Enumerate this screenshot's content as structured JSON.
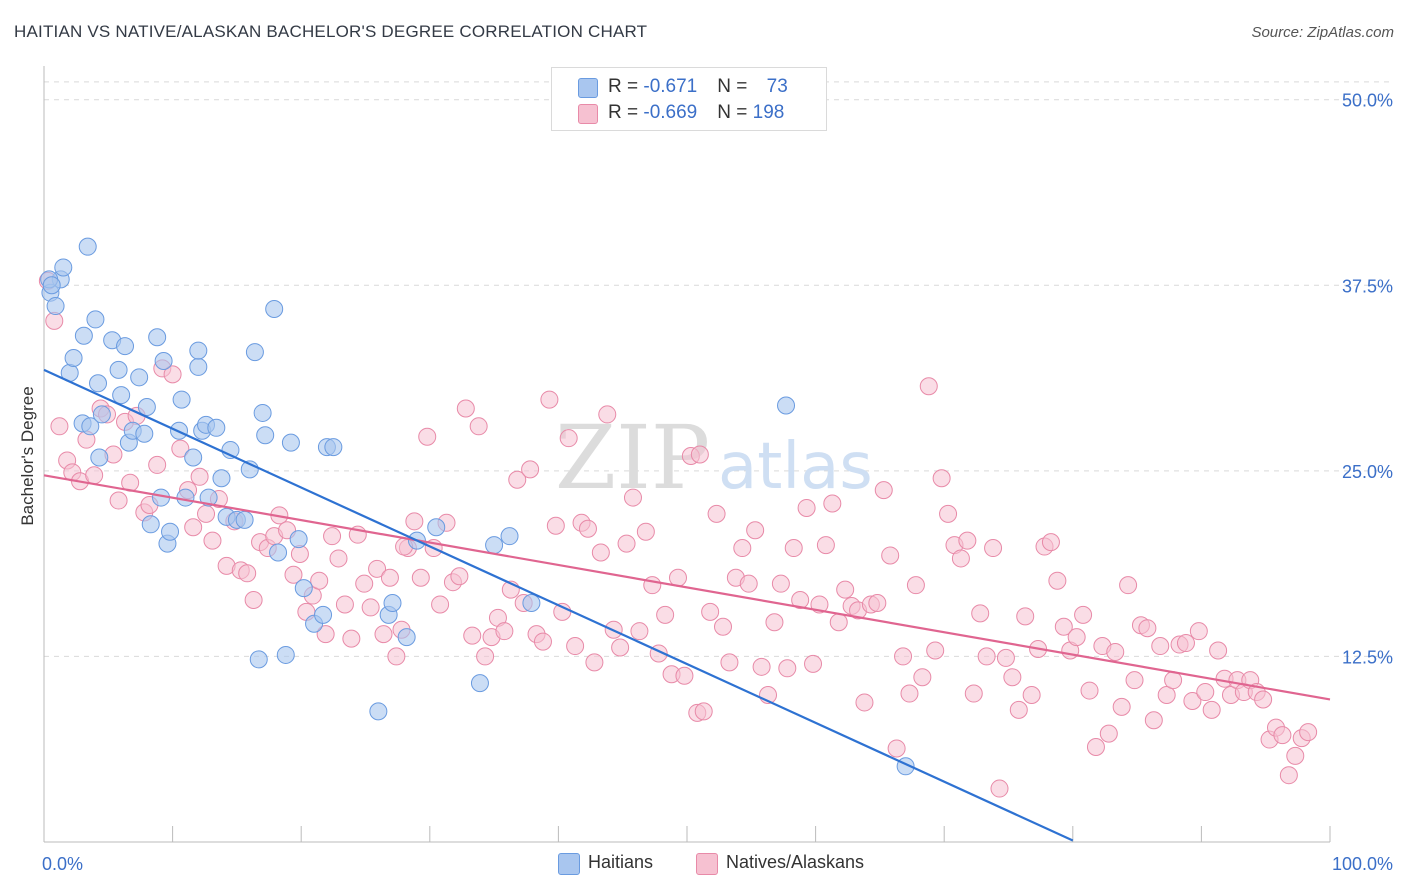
{
  "header": {
    "title": "HAITIAN VS NATIVE/ALASKAN BACHELOR'S DEGREE CORRELATION CHART",
    "source": "Source: ZipAtlas.com"
  },
  "watermark": {
    "zip": "ZIP",
    "atlas": "atlas"
  },
  "legend": {
    "series1": {
      "r_label": "R = ",
      "r_value": "-0.671",
      "n_label": "N = ",
      "n_value": "73"
    },
    "series2": {
      "r_label": "R = ",
      "r_value": "-0.669",
      "n_label": "N = ",
      "n_value": "198"
    }
  },
  "bottom_legend": {
    "series1": "Haitians",
    "series2": "Natives/Alaskans"
  },
  "colors": {
    "blue_fill": "#a9c6ef",
    "blue_stroke": "#6a9be0",
    "blue_line": "#2e72d2",
    "pink_fill": "#f6c1d1",
    "pink_stroke": "#e88aa8",
    "pink_line": "#e06590",
    "axis_text": "#3b6fc8",
    "grid": "#d9d9d9"
  },
  "chart_data": {
    "type": "scatter",
    "title": "HAITIAN VS NATIVE/ALASKAN BACHELOR'S DEGREE CORRELATION CHART",
    "xlabel": "",
    "ylabel": "Bachelor's Degree",
    "xlim": [
      0,
      100
    ],
    "ylim": [
      0,
      52
    ],
    "x_tick_labels": [
      "0.0%",
      "100.0%"
    ],
    "y_ticks": [
      12.5,
      25.0,
      37.5,
      50.0
    ],
    "y_tick_labels": [
      "12.5%",
      "25.0%",
      "37.5%",
      "50.0%"
    ],
    "series": [
      {
        "name": "Haitians",
        "r": -0.671,
        "n": 73,
        "trend": {
          "x": [
            0,
            80
          ],
          "y": [
            31.8,
            0.1
          ]
        },
        "points": [
          [
            0.5,
            37.0
          ],
          [
            0.9,
            36.1
          ],
          [
            1.3,
            37.9
          ],
          [
            1.5,
            38.7
          ],
          [
            3.4,
            40.1
          ],
          [
            2.0,
            31.6
          ],
          [
            2.3,
            32.6
          ],
          [
            3.0,
            28.2
          ],
          [
            3.1,
            34.1
          ],
          [
            3.6,
            28.0
          ],
          [
            4.0,
            35.2
          ],
          [
            4.2,
            30.9
          ],
          [
            4.3,
            25.9
          ],
          [
            4.5,
            28.8
          ],
          [
            5.3,
            33.8
          ],
          [
            5.8,
            31.8
          ],
          [
            6.0,
            30.1
          ],
          [
            6.3,
            33.4
          ],
          [
            6.6,
            26.9
          ],
          [
            6.9,
            27.7
          ],
          [
            7.4,
            31.3
          ],
          [
            7.8,
            27.5
          ],
          [
            8.0,
            29.3
          ],
          [
            8.3,
            21.4
          ],
          [
            8.8,
            34.0
          ],
          [
            9.1,
            23.2
          ],
          [
            9.3,
            32.4
          ],
          [
            9.6,
            20.1
          ],
          [
            9.8,
            20.9
          ],
          [
            10.5,
            27.7
          ],
          [
            10.7,
            29.8
          ],
          [
            11.0,
            23.2
          ],
          [
            11.6,
            25.9
          ],
          [
            12.0,
            32.0
          ],
          [
            12.0,
            33.1
          ],
          [
            12.3,
            27.7
          ],
          [
            12.6,
            28.1
          ],
          [
            12.8,
            23.2
          ],
          [
            13.4,
            27.9
          ],
          [
            13.8,
            24.5
          ],
          [
            14.2,
            21.9
          ],
          [
            14.5,
            26.4
          ],
          [
            15.0,
            21.7
          ],
          [
            15.6,
            21.7
          ],
          [
            16.0,
            25.1
          ],
          [
            16.4,
            33.0
          ],
          [
            16.7,
            12.3
          ],
          [
            17.0,
            28.9
          ],
          [
            17.2,
            27.4
          ],
          [
            17.9,
            35.9
          ],
          [
            18.2,
            19.5
          ],
          [
            18.8,
            12.6
          ],
          [
            19.2,
            26.9
          ],
          [
            19.8,
            20.4
          ],
          [
            20.2,
            17.1
          ],
          [
            21.0,
            14.7
          ],
          [
            21.7,
            15.3
          ],
          [
            22.0,
            26.6
          ],
          [
            22.5,
            26.6
          ],
          [
            26.0,
            8.8
          ],
          [
            26.8,
            15.3
          ],
          [
            27.1,
            16.1
          ],
          [
            28.2,
            13.8
          ],
          [
            29.0,
            20.3
          ],
          [
            30.5,
            21.2
          ],
          [
            33.9,
            10.7
          ],
          [
            35.0,
            20.0
          ],
          [
            36.2,
            20.6
          ],
          [
            37.9,
            16.1
          ],
          [
            57.7,
            29.4
          ],
          [
            67.0,
            5.1
          ],
          [
            0.4,
            37.9
          ],
          [
            0.6,
            37.5
          ]
        ]
      },
      {
        "name": "Natives/Alaskans",
        "r": -0.669,
        "n": 198,
        "trend": {
          "x": [
            0,
            100
          ],
          "y": [
            24.7,
            9.6
          ]
        },
        "points": [
          [
            0.3,
            37.8
          ],
          [
            0.8,
            35.1
          ],
          [
            1.2,
            28.0
          ],
          [
            1.8,
            25.7
          ],
          [
            2.2,
            24.9
          ],
          [
            2.8,
            24.3
          ],
          [
            3.3,
            27.1
          ],
          [
            3.9,
            24.7
          ],
          [
            4.4,
            29.2
          ],
          [
            4.9,
            28.8
          ],
          [
            5.4,
            26.1
          ],
          [
            5.8,
            23.0
          ],
          [
            6.3,
            28.3
          ],
          [
            6.7,
            24.2
          ],
          [
            7.2,
            28.7
          ],
          [
            7.8,
            22.2
          ],
          [
            8.2,
            22.7
          ],
          [
            8.8,
            25.4
          ],
          [
            9.2,
            31.9
          ],
          [
            10.0,
            31.5
          ],
          [
            10.6,
            26.5
          ],
          [
            11.2,
            23.7
          ],
          [
            11.6,
            21.2
          ],
          [
            12.1,
            24.6
          ],
          [
            12.6,
            22.1
          ],
          [
            13.1,
            20.3
          ],
          [
            13.6,
            23.1
          ],
          [
            14.2,
            18.6
          ],
          [
            14.8,
            21.6
          ],
          [
            15.3,
            18.3
          ],
          [
            15.8,
            18.1
          ],
          [
            16.3,
            16.3
          ],
          [
            16.8,
            20.2
          ],
          [
            17.4,
            19.8
          ],
          [
            17.9,
            20.6
          ],
          [
            18.3,
            22.0
          ],
          [
            18.9,
            21.0
          ],
          [
            19.4,
            18.0
          ],
          [
            19.9,
            19.4
          ],
          [
            20.4,
            15.5
          ],
          [
            20.9,
            16.6
          ],
          [
            21.4,
            17.6
          ],
          [
            21.9,
            14.0
          ],
          [
            22.4,
            20.6
          ],
          [
            22.9,
            19.1
          ],
          [
            23.4,
            16.0
          ],
          [
            23.9,
            13.7
          ],
          [
            24.4,
            20.7
          ],
          [
            24.9,
            17.4
          ],
          [
            25.4,
            15.8
          ],
          [
            25.9,
            18.4
          ],
          [
            26.4,
            14.0
          ],
          [
            26.9,
            17.8
          ],
          [
            27.4,
            12.5
          ],
          [
            27.8,
            14.3
          ],
          [
            28.3,
            19.8
          ],
          [
            28.8,
            21.6
          ],
          [
            29.3,
            17.8
          ],
          [
            29.8,
            27.3
          ],
          [
            30.3,
            19.8
          ],
          [
            30.8,
            16.0
          ],
          [
            31.3,
            21.5
          ],
          [
            31.8,
            17.5
          ],
          [
            32.3,
            17.9
          ],
          [
            32.8,
            29.2
          ],
          [
            33.3,
            13.9
          ],
          [
            33.8,
            28.0
          ],
          [
            34.3,
            12.5
          ],
          [
            34.8,
            13.8
          ],
          [
            35.3,
            15.1
          ],
          [
            35.8,
            14.2
          ],
          [
            36.3,
            17.0
          ],
          [
            36.8,
            24.4
          ],
          [
            37.3,
            16.1
          ],
          [
            37.8,
            25.1
          ],
          [
            38.3,
            14.0
          ],
          [
            38.8,
            13.5
          ],
          [
            39.3,
            29.8
          ],
          [
            39.8,
            21.3
          ],
          [
            40.3,
            15.5
          ],
          [
            40.8,
            27.2
          ],
          [
            41.3,
            13.2
          ],
          [
            41.8,
            21.5
          ],
          [
            42.3,
            21.1
          ],
          [
            42.8,
            12.1
          ],
          [
            43.3,
            19.5
          ],
          [
            43.8,
            28.8
          ],
          [
            44.3,
            14.3
          ],
          [
            44.8,
            13.1
          ],
          [
            45.3,
            20.1
          ],
          [
            45.8,
            23.2
          ],
          [
            46.3,
            14.2
          ],
          [
            46.8,
            20.9
          ],
          [
            47.3,
            17.3
          ],
          [
            47.8,
            12.7
          ],
          [
            48.3,
            15.3
          ],
          [
            48.8,
            11.3
          ],
          [
            49.3,
            17.8
          ],
          [
            49.8,
            11.2
          ],
          [
            50.3,
            26.0
          ],
          [
            50.8,
            8.7
          ],
          [
            51.3,
            8.8
          ],
          [
            51.8,
            15.5
          ],
          [
            52.3,
            22.1
          ],
          [
            52.8,
            14.5
          ],
          [
            53.3,
            12.1
          ],
          [
            53.8,
            17.8
          ],
          [
            54.3,
            19.8
          ],
          [
            54.8,
            17.4
          ],
          [
            55.3,
            21.0
          ],
          [
            55.8,
            11.8
          ],
          [
            56.3,
            9.9
          ],
          [
            56.8,
            14.8
          ],
          [
            57.3,
            17.4
          ],
          [
            57.8,
            11.7
          ],
          [
            58.3,
            19.8
          ],
          [
            58.8,
            16.3
          ],
          [
            59.3,
            22.5
          ],
          [
            59.8,
            12.0
          ],
          [
            60.3,
            16.0
          ],
          [
            60.8,
            20.0
          ],
          [
            61.3,
            22.8
          ],
          [
            61.8,
            14.8
          ],
          [
            62.3,
            17.0
          ],
          [
            62.8,
            15.9
          ],
          [
            63.3,
            15.6
          ],
          [
            63.8,
            9.4
          ],
          [
            64.3,
            16.0
          ],
          [
            64.8,
            16.1
          ],
          [
            65.3,
            23.7
          ],
          [
            65.8,
            19.3
          ],
          [
            66.3,
            6.3
          ],
          [
            66.8,
            12.5
          ],
          [
            67.3,
            10.0
          ],
          [
            67.8,
            17.3
          ],
          [
            68.3,
            11.1
          ],
          [
            68.8,
            30.7
          ],
          [
            69.3,
            12.9
          ],
          [
            69.8,
            24.5
          ],
          [
            70.3,
            22.1
          ],
          [
            70.8,
            20.0
          ],
          [
            71.3,
            19.1
          ],
          [
            71.8,
            20.3
          ],
          [
            72.3,
            10.0
          ],
          [
            72.8,
            15.4
          ],
          [
            73.3,
            12.5
          ],
          [
            73.8,
            19.8
          ],
          [
            74.3,
            3.6
          ],
          [
            74.8,
            12.4
          ],
          [
            75.3,
            11.1
          ],
          [
            75.8,
            8.9
          ],
          [
            76.3,
            15.2
          ],
          [
            76.8,
            9.9
          ],
          [
            77.3,
            13.0
          ],
          [
            77.8,
            19.9
          ],
          [
            78.3,
            20.2
          ],
          [
            78.8,
            17.6
          ],
          [
            79.3,
            14.5
          ],
          [
            79.8,
            12.9
          ],
          [
            80.3,
            13.8
          ],
          [
            80.8,
            15.3
          ],
          [
            81.3,
            10.2
          ],
          [
            81.8,
            6.4
          ],
          [
            82.3,
            13.2
          ],
          [
            82.8,
            7.3
          ],
          [
            83.3,
            12.8
          ],
          [
            83.8,
            9.1
          ],
          [
            84.3,
            17.3
          ],
          [
            84.8,
            10.9
          ],
          [
            85.3,
            14.6
          ],
          [
            85.8,
            14.4
          ],
          [
            86.3,
            8.2
          ],
          [
            86.8,
            13.2
          ],
          [
            87.3,
            9.9
          ],
          [
            87.8,
            10.9
          ],
          [
            88.3,
            13.3
          ],
          [
            88.8,
            13.4
          ],
          [
            89.3,
            9.5
          ],
          [
            89.8,
            14.2
          ],
          [
            90.3,
            10.1
          ],
          [
            90.8,
            8.9
          ],
          [
            91.3,
            12.9
          ],
          [
            91.8,
            11.0
          ],
          [
            92.3,
            9.9
          ],
          [
            92.8,
            10.9
          ],
          [
            93.3,
            10.1
          ],
          [
            93.8,
            10.9
          ],
          [
            94.3,
            10.1
          ],
          [
            94.8,
            9.6
          ],
          [
            95.3,
            6.9
          ],
          [
            95.8,
            7.7
          ],
          [
            96.3,
            7.2
          ],
          [
            96.8,
            4.5
          ],
          [
            97.3,
            5.8
          ],
          [
            97.8,
            7.0
          ],
          [
            98.3,
            7.4
          ],
          [
            28.0,
            19.9
          ],
          [
            51.0,
            26.1
          ]
        ]
      }
    ]
  }
}
